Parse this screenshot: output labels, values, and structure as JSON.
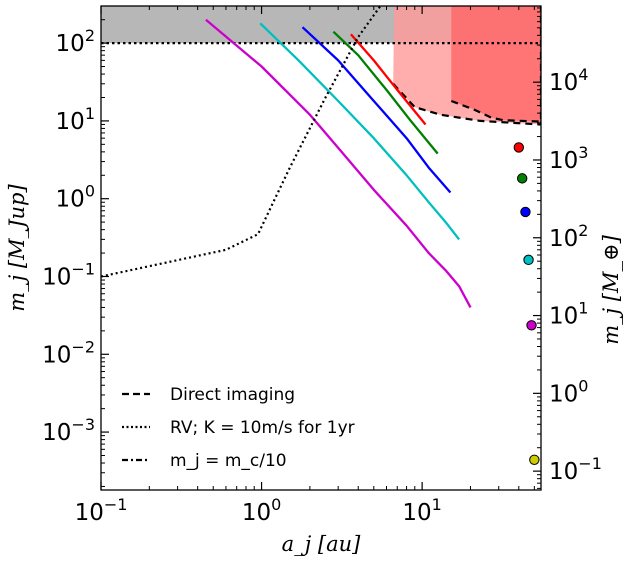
{
  "chart_data": {
    "type": "line",
    "xlabel": "a_j [au]",
    "ylabel_left": "m_j [M_Jup]",
    "ylabel_right": "m_j [M_⊕]",
    "x_scale": "log",
    "y_scale": "log",
    "xlim": [
      0.1,
      55
    ],
    "ylim_left": [
      0.00018,
      300
    ],
    "ylim_right_earth_mass": [
      0.057,
      95000
    ],
    "mjup_to_mearth": 317.8,
    "x_ticks": [
      {
        "v": 0.1,
        "label": "10^-1"
      },
      {
        "v": 1,
        "label": "10^0"
      },
      {
        "v": 10,
        "label": "10^1"
      }
    ],
    "y_ticks_left": [
      {
        "v": 100,
        "label": "10^2"
      },
      {
        "v": 10,
        "label": "10^1"
      },
      {
        "v": 1,
        "label": "10^0"
      },
      {
        "v": 0.1,
        "label": "10^-1"
      },
      {
        "v": 0.01,
        "label": "10^-2"
      },
      {
        "v": 0.001,
        "label": "10^-3"
      }
    ],
    "y_ticks_right": [
      {
        "v": 10000,
        "label": "10^4"
      },
      {
        "v": 1000,
        "label": "10^3"
      },
      {
        "v": 100,
        "label": "10^2"
      },
      {
        "v": 10,
        "label": "10^1"
      },
      {
        "v": 1,
        "label": "10^0"
      },
      {
        "v": 0.1,
        "label": "10^-1"
      }
    ],
    "grey_region": {
      "y_min": 100,
      "color": "#999999"
    },
    "direct_imaging_regions": [
      {
        "name": "outer",
        "color": "#ff9999",
        "points": [
          [
            6.7,
            300
          ],
          [
            55,
            300
          ],
          [
            55,
            9
          ],
          [
            23,
            10
          ],
          [
            13,
            12
          ],
          [
            9,
            15
          ],
          [
            6.6,
            30
          ]
        ]
      },
      {
        "name": "inner",
        "color": "#ff6666",
        "points": [
          [
            15.2,
            300
          ],
          [
            55,
            300
          ],
          [
            55,
            9.8
          ],
          [
            32,
            10.2
          ],
          [
            27,
            11
          ],
          [
            21,
            14
          ],
          [
            15.2,
            18
          ]
        ]
      }
    ],
    "series": [
      {
        "color": "#cc00cc",
        "points": [
          [
            0.45,
            200
          ],
          [
            1,
            50
          ],
          [
            2,
            12
          ],
          [
            3,
            4.5
          ],
          [
            5,
            1.3
          ],
          [
            8,
            0.45
          ],
          [
            11,
            0.2
          ],
          [
            14,
            0.12
          ],
          [
            17,
            0.075
          ],
          [
            20,
            0.04
          ]
        ]
      },
      {
        "color": "#00bfbf",
        "points": [
          [
            0.98,
            180
          ],
          [
            1.7,
            60
          ],
          [
            3,
            18
          ],
          [
            5,
            6
          ],
          [
            8,
            2
          ],
          [
            11,
            0.9
          ],
          [
            14,
            0.5
          ],
          [
            17,
            0.3
          ]
        ]
      },
      {
        "color": "#0000ff",
        "points": [
          [
            1.8,
            160
          ],
          [
            3,
            60
          ],
          [
            5,
            18
          ],
          [
            8,
            6
          ],
          [
            11,
            2.5
          ],
          [
            15,
            1.2
          ]
        ]
      },
      {
        "color": "#008000",
        "points": [
          [
            2.8,
            140
          ],
          [
            4,
            70
          ],
          [
            6,
            25
          ],
          [
            8.5,
            10
          ],
          [
            12.5,
            3.8
          ]
        ]
      },
      {
        "color": "#ff0000",
        "points": [
          [
            3.6,
            130
          ],
          [
            5,
            60
          ],
          [
            7,
            25
          ],
          [
            10.5,
            9
          ]
        ]
      }
    ],
    "rv_line": {
      "points": [
        [
          0.1,
          0.1
        ],
        [
          0.6,
          0.22
        ],
        [
          0.95,
          0.35
        ],
        [
          1.5,
          2.5
        ],
        [
          2.5,
          20
        ],
        [
          4,
          120
        ],
        [
          5.5,
          300
        ]
      ]
    },
    "markers": [
      {
        "color": "#ff0000",
        "x": 40,
        "y_earth": 1450
      },
      {
        "color": "#008000",
        "x": 42,
        "y_earth": 580
      },
      {
        "color": "#0000ff",
        "x": 44,
        "y_earth": 215
      },
      {
        "color": "#00bfbf",
        "x": 46,
        "y_earth": 52
      },
      {
        "color": "#cc00cc",
        "x": 48,
        "y_earth": 7.5
      },
      {
        "color": "#cccc00",
        "x": 50,
        "y_earth": 0.14
      }
    ],
    "legend": {
      "placement": "lower-left",
      "entries": [
        {
          "style": "dashed",
          "label": "Direct imaging"
        },
        {
          "style": "dotted",
          "label": "RV;  K = 10m/s for 1yr"
        },
        {
          "style": "dashdot",
          "label": "m_j = m_c/10"
        }
      ]
    }
  }
}
